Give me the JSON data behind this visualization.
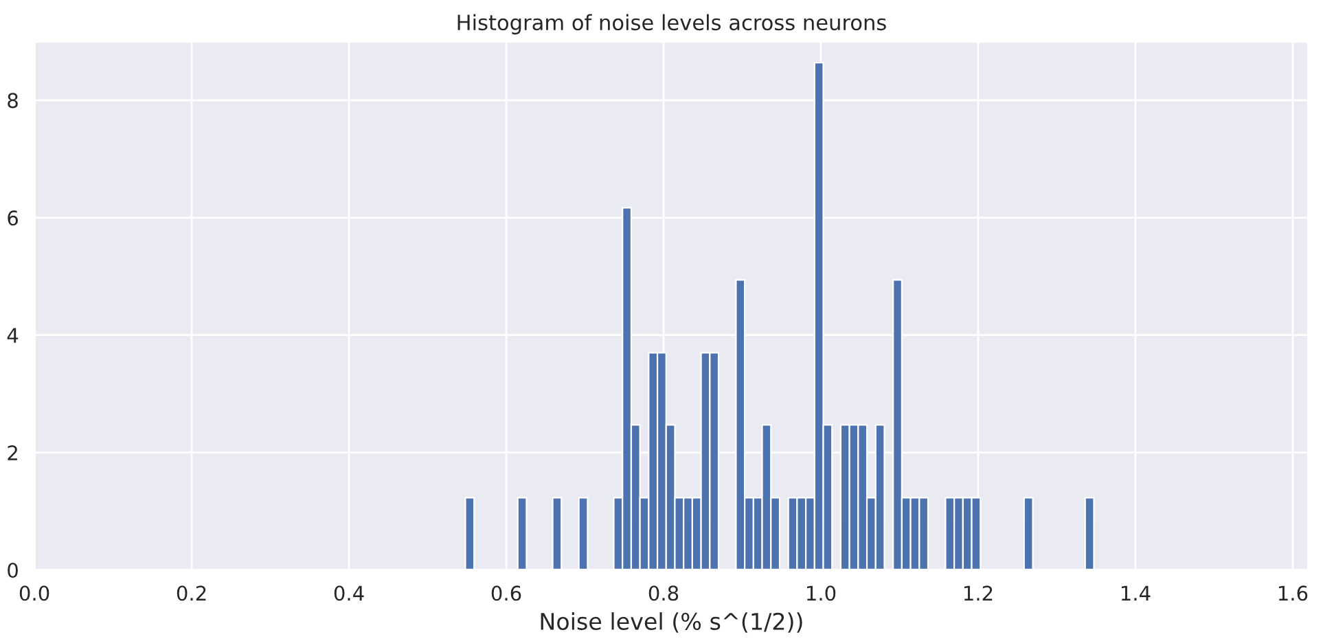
{
  "chart_data": {
    "type": "histogram",
    "title": "Histogram of noise levels across neurons",
    "xlabel": "Noise level (% s^(1/2))",
    "bins": [
      0.548,
      0.5591,
      0.5702,
      0.5813,
      0.5924,
      0.6035,
      0.6146,
      0.6257,
      0.6368,
      0.6479,
      0.659,
      0.6701,
      0.6812,
      0.6923,
      0.7034,
      0.7145,
      0.7256,
      0.7367,
      0.7478,
      0.7589,
      0.77,
      0.7811,
      0.7922,
      0.8033,
      0.8144,
      0.8255,
      0.8366,
      0.8477,
      0.8588,
      0.8699,
      0.881,
      0.8921,
      0.9032,
      0.9143,
      0.9254,
      0.9365,
      0.9476,
      0.9587,
      0.9698,
      0.9809,
      0.992,
      1.0031,
      1.0142,
      1.0253,
      1.0364,
      1.0475,
      1.0586,
      1.0697,
      1.0808,
      1.0919,
      1.103,
      1.1141,
      1.1252,
      1.1363,
      1.1474,
      1.1585,
      1.1696,
      1.1807,
      1.1918,
      1.2029,
      1.214,
      1.2251,
      1.2362,
      1.2473,
      1.2584,
      1.2695,
      1.2806,
      1.2917,
      1.3028,
      1.3139,
      1.325,
      1.3361,
      1.3472
    ],
    "values": [
      1.23,
      0,
      0,
      0,
      0,
      0,
      1.23,
      0,
      0,
      0,
      1.23,
      0,
      0,
      1.23,
      0,
      0,
      0,
      1.23,
      6.17,
      2.47,
      1.23,
      3.7,
      3.7,
      2.47,
      1.23,
      1.23,
      1.23,
      3.7,
      3.7,
      0,
      0,
      4.94,
      1.23,
      1.23,
      2.47,
      1.23,
      0,
      1.23,
      1.23,
      1.23,
      8.64,
      2.47,
      0,
      2.47,
      2.47,
      2.47,
      1.23,
      2.47,
      0,
      4.94,
      1.23,
      1.23,
      1.23,
      0,
      0,
      1.23,
      1.23,
      1.23,
      1.23,
      0,
      0,
      0,
      0,
      0,
      1.23,
      0,
      0,
      0,
      0,
      0,
      0,
      1.23
    ],
    "color": "#4c72b0",
    "xlim": [
      0,
      1.62
    ],
    "ylim": [
      0,
      9.0
    ],
    "xticks": [
      {
        "value": 0,
        "label": "0.0"
      },
      0.2,
      0.4,
      0.6,
      0.8,
      {
        "value": 1,
        "label": "1.0"
      },
      1.2,
      1.4,
      1.6
    ],
    "yticks": [
      0,
      2,
      4,
      6,
      8
    ],
    "grid": true
  }
}
